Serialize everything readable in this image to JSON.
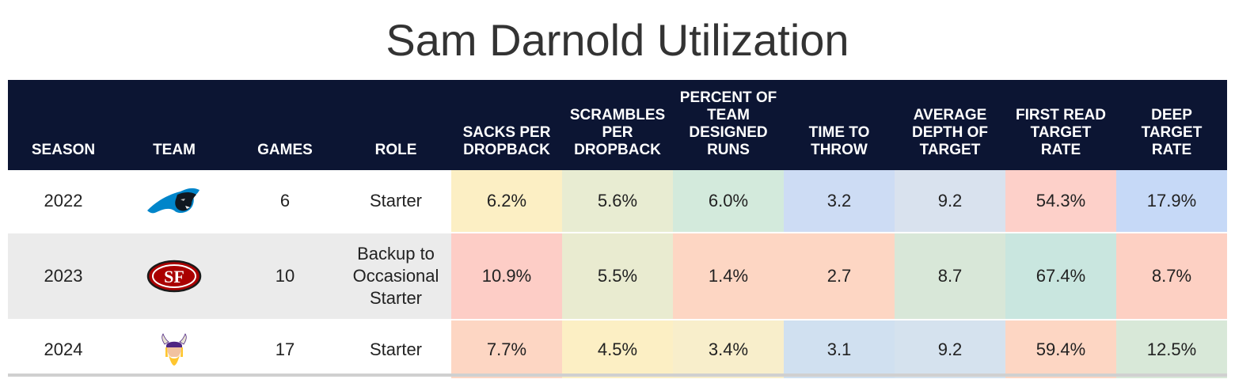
{
  "title": "Sam Darnold Utilization",
  "chart_data": {
    "type": "table",
    "title": "Sam Darnold Utilization",
    "columns": [
      "SEASON",
      "TEAM",
      "GAMES",
      "ROLE",
      "SACKS PER DROPBACK",
      "SCRAMBLES PER DROPBACK",
      "PERCENT OF TEAM DESIGNED RUNS",
      "TIME TO THROW",
      "AVERAGE DEPTH OF TARGET",
      "FIRST READ TARGET RATE",
      "DEEP TARGET RATE"
    ],
    "rows": [
      {
        "season": "2022",
        "team_logo": "panthers-logo-icon",
        "games": "6",
        "role": "Starter",
        "metrics": [
          "6.2%",
          "5.6%",
          "6.0%",
          "3.2",
          "9.2",
          "54.3%",
          "17.9%"
        ],
        "colors": [
          "#fcefc4",
          "#e8ecd2",
          "#d3eadc",
          "#cddcf4",
          "#d9e2ee",
          "#fdd0c9",
          "#c6d9f7"
        ]
      },
      {
        "season": "2023",
        "team_logo": "49ers-logo-icon",
        "games": "10",
        "role": "Backup to Occasional Starter",
        "metrics": [
          "10.9%",
          "5.5%",
          "1.4%",
          "2.7",
          "8.7",
          "67.4%",
          "8.7%"
        ],
        "colors": [
          "#fdcdc6",
          "#e9ebd0",
          "#fdd6c3",
          "#fdd6c3",
          "#d8e7d8",
          "#c9e6df",
          "#fdd0c3"
        ]
      },
      {
        "season": "2024",
        "team_logo": "vikings-logo-icon",
        "games": "17",
        "role": "Starter",
        "metrics": [
          "7.7%",
          "4.5%",
          "3.4%",
          "3.1",
          "9.2",
          "59.4%",
          "12.5%"
        ],
        "colors": [
          "#fdd6c3",
          "#fcefc4",
          "#f8eecb",
          "#d0e0f0",
          "#d5e2ee",
          "#fdd6c3",
          "#d8e8d8"
        ]
      }
    ]
  },
  "header": {
    "season": "SEASON",
    "team": "TEAM",
    "games": "GAMES",
    "role": "ROLE",
    "sacks": "SACKS PER DROPBACK",
    "scrambles": "SCRAMBLES PER DROPBACK",
    "designed_runs": "PERCENT OF TEAM DESIGNED RUNS",
    "time_to_throw": "TIME TO THROW",
    "adot": "AVERAGE DEPTH OF TARGET",
    "first_read": "FIRST READ TARGET RATE",
    "deep_target": "DEEP TARGET RATE"
  },
  "colors": {
    "header_bg": "#0c1533",
    "header_text": "#ffffff",
    "band_grey": "#ebebeb"
  }
}
